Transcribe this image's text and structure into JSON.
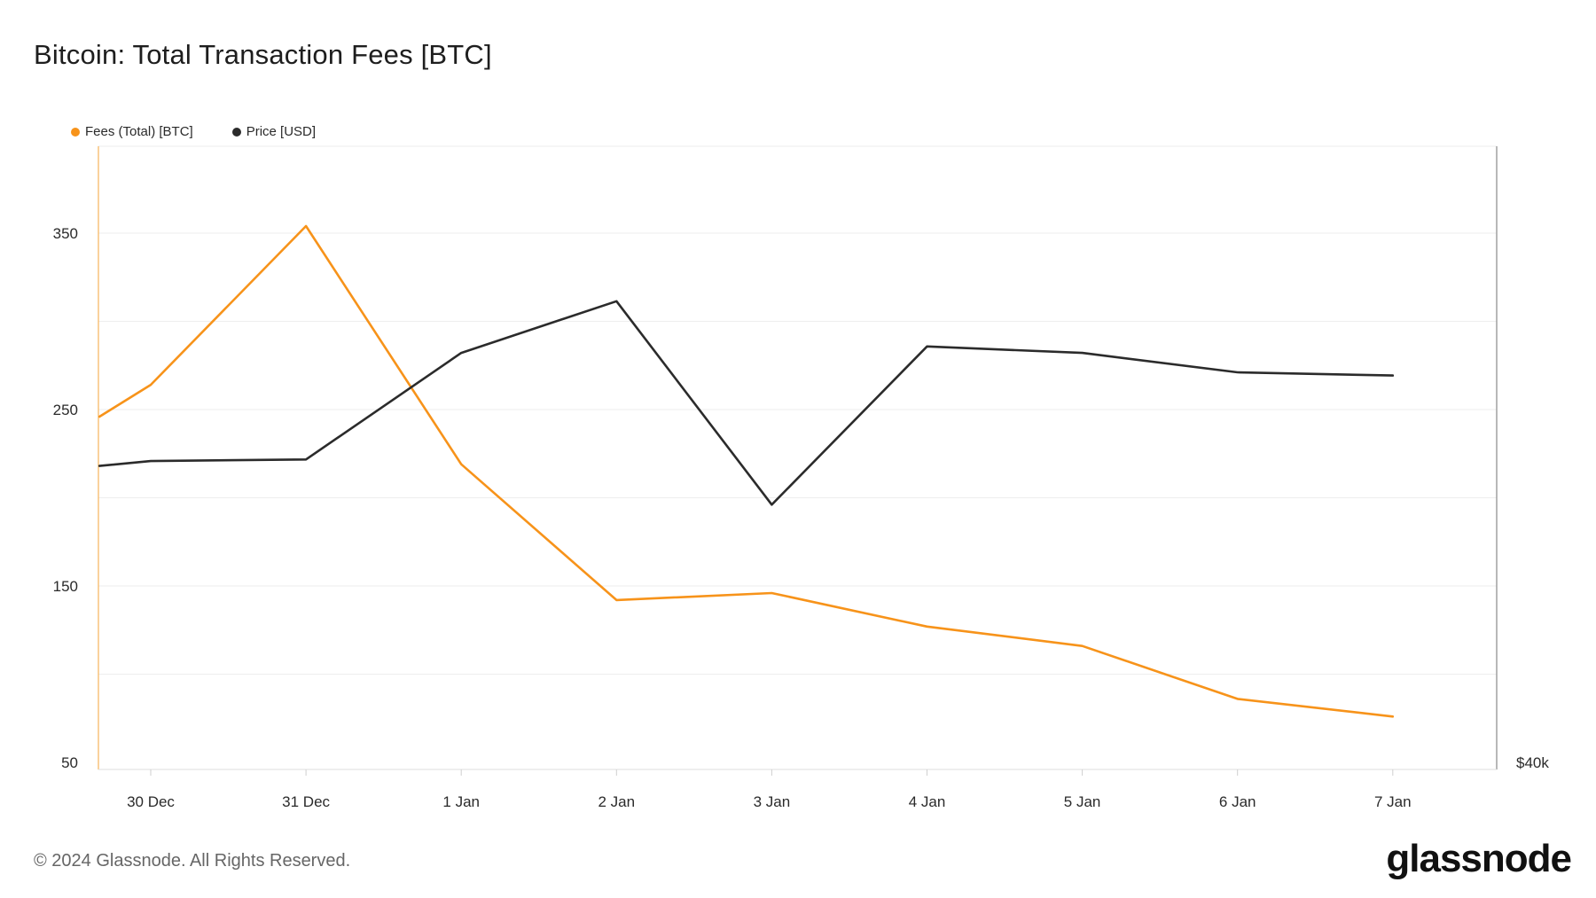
{
  "title": "Bitcoin: Total Transaction Fees [BTC]",
  "legend": [
    {
      "label": "Fees (Total) [BTC]",
      "color": "#f7931a"
    },
    {
      "label": "Price [USD]",
      "color": "#2b2b2b"
    }
  ],
  "footer": {
    "copyright": "© 2024 Glassnode. All Rights Reserved.",
    "brand": "glassnode"
  },
  "chart_data": {
    "type": "line",
    "title": "Bitcoin: Total Transaction Fees [BTC]",
    "xlabel": "",
    "ylabel": "",
    "grid": true,
    "legend_position": "top-left",
    "x_ticks": [
      "30 Dec",
      "31 Dec",
      "1 Jan",
      "2 Jan",
      "3 Jan",
      "4 Jan",
      "5 Jan",
      "6 Jan",
      "7 Jan"
    ],
    "y_left": {
      "ticks": [
        "350",
        "250",
        "150",
        "50"
      ],
      "tick_values": [
        350,
        250,
        150,
        50
      ],
      "range": [
        50,
        400
      ]
    },
    "y_right": {
      "ticks": [
        "$40k"
      ]
    },
    "series": [
      {
        "name": "Fees (Total) [BTC]",
        "color": "#f7931a",
        "axis": "left",
        "x": [
          "29 Dec",
          "30 Dec",
          "31 Dec",
          "1 Jan",
          "2 Jan",
          "3 Jan",
          "4 Jan",
          "5 Jan",
          "6 Jan",
          "7 Jan"
        ],
        "x_offset": [
          -0.33,
          0,
          1,
          2,
          3,
          4,
          5,
          6,
          7,
          8
        ],
        "values": [
          246,
          264,
          354,
          219,
          142,
          146,
          127,
          116,
          86,
          76
        ]
      },
      {
        "name": "Price [USD]",
        "color": "#2b2b2b",
        "axis": "right",
        "x": [
          "29 Dec",
          "30 Dec",
          "31 Dec",
          "1 Jan",
          "2 Jan",
          "3 Jan",
          "4 Jan",
          "5 Jan",
          "6 Jan",
          "7 Jan"
        ],
        "x_offset": [
          -0.33,
          0,
          1,
          2,
          3,
          4,
          5,
          6,
          7,
          8
        ],
        "values": [
          42100,
          42250,
          42300,
          45600,
          47200,
          40900,
          45800,
          45600,
          45000,
          44900
        ],
        "range": [
          32700,
          52000
        ]
      }
    ]
  }
}
